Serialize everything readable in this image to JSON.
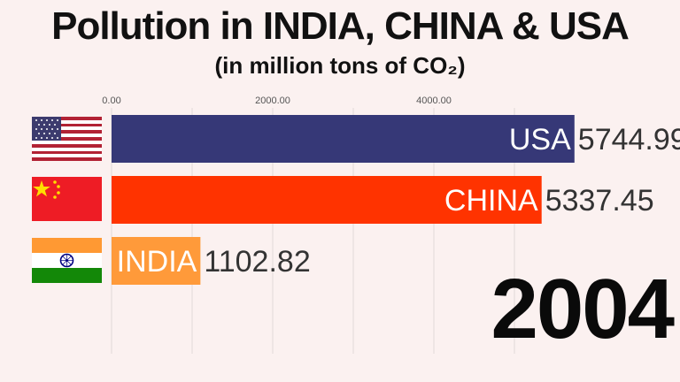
{
  "title": "Pollution in INDIA, CHINA & USA",
  "subtitle": "(in million tons of CO₂)",
  "year": "2004",
  "chart_data": {
    "type": "bar",
    "orientation": "horizontal",
    "title": "Pollution in INDIA, CHINA & USA",
    "subtitle": "(in million tons of CO₂)",
    "xlim": [
      0,
      5900
    ],
    "ticks": [
      0,
      2000,
      4000
    ],
    "tick_labels": [
      "0.00",
      "2000.00",
      "4000.00"
    ],
    "grid": true,
    "categories": [
      "USA",
      "CHINA",
      "INDIA"
    ],
    "values": [
      5744.99,
      5337.45,
      1102.82
    ],
    "value_labels": [
      "5744.99",
      "5337.45",
      "1102.82"
    ],
    "colors": [
      "#363877",
      "#ff3300",
      "#ff9a3a"
    ],
    "flags": [
      "usa-flag",
      "china-flag",
      "india-flag"
    ]
  }
}
